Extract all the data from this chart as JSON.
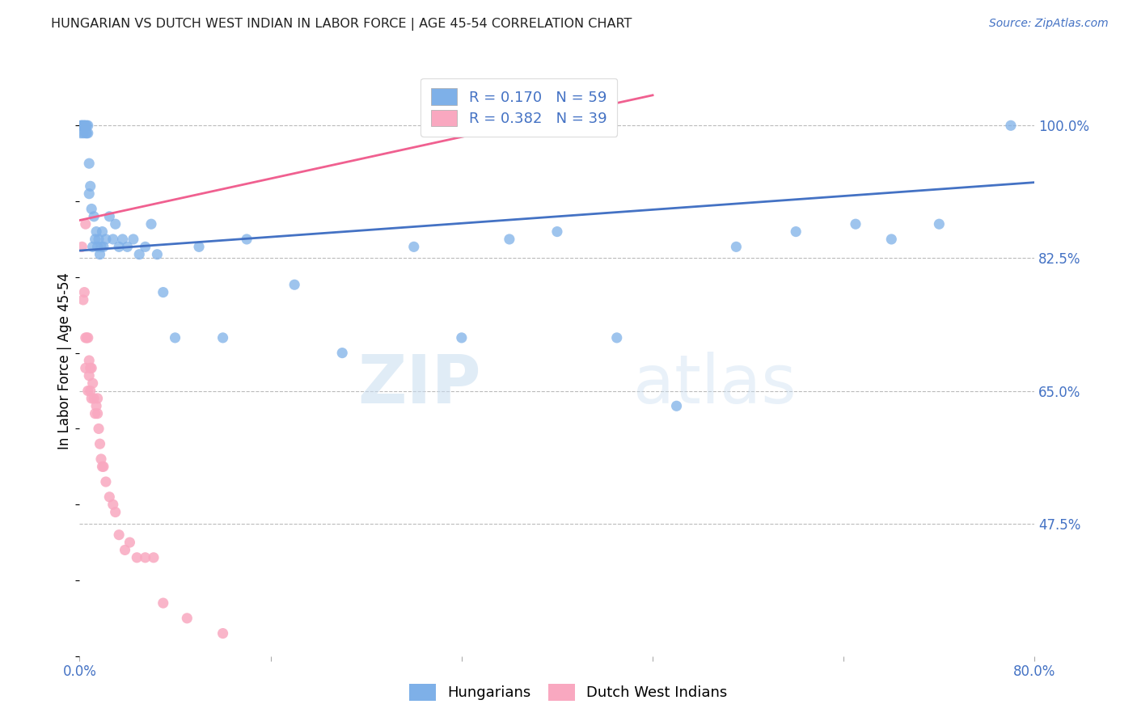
{
  "title": "HUNGARIAN VS DUTCH WEST INDIAN IN LABOR FORCE | AGE 45-54 CORRELATION CHART",
  "source": "Source: ZipAtlas.com",
  "ylabel": "In Labor Force | Age 45-54",
  "xlim": [
    0.0,
    0.8
  ],
  "ylim": [
    0.3,
    1.08
  ],
  "yticks": [
    0.475,
    0.65,
    0.825,
    1.0
  ],
  "ytick_labels": [
    "47.5%",
    "65.0%",
    "82.5%",
    "100.0%"
  ],
  "xticks": [
    0.0,
    0.16,
    0.32,
    0.48,
    0.64,
    0.8
  ],
  "xtick_labels": [
    "0.0%",
    "",
    "",
    "",
    "",
    "80.0%"
  ],
  "blue_R": 0.17,
  "blue_N": 59,
  "pink_R": 0.382,
  "pink_N": 39,
  "blue_color": "#7EB0E8",
  "pink_color": "#F9A8C0",
  "trend_blue": "#4472C4",
  "trend_pink": "#F06090",
  "blue_label": "Hungarians",
  "pink_label": "Dutch West Indians",
  "legend_R_color": "#4472C4",
  "title_color": "#222222",
  "axis_color": "#4472C4",
  "grid_color": "#bbbbbb",
  "watermark_zip": "ZIP",
  "watermark_atlas": "atlas",
  "blue_x": [
    0.001,
    0.001,
    0.002,
    0.002,
    0.003,
    0.003,
    0.004,
    0.004,
    0.005,
    0.005,
    0.006,
    0.006,
    0.007,
    0.007,
    0.008,
    0.008,
    0.009,
    0.01,
    0.011,
    0.012,
    0.013,
    0.014,
    0.015,
    0.016,
    0.017,
    0.018,
    0.019,
    0.02,
    0.022,
    0.025,
    0.028,
    0.03,
    0.033,
    0.036,
    0.04,
    0.045,
    0.05,
    0.055,
    0.06,
    0.065,
    0.07,
    0.08,
    0.1,
    0.12,
    0.14,
    0.18,
    0.22,
    0.28,
    0.32,
    0.36,
    0.4,
    0.45,
    0.5,
    0.55,
    0.6,
    0.65,
    0.68,
    0.72,
    0.78
  ],
  "blue_y": [
    1.0,
    0.99,
    1.0,
    1.0,
    1.0,
    0.99,
    1.0,
    1.0,
    1.0,
    0.99,
    1.0,
    0.99,
    1.0,
    0.99,
    0.91,
    0.95,
    0.92,
    0.89,
    0.84,
    0.88,
    0.85,
    0.86,
    0.84,
    0.85,
    0.83,
    0.84,
    0.86,
    0.84,
    0.85,
    0.88,
    0.85,
    0.87,
    0.84,
    0.85,
    0.84,
    0.85,
    0.83,
    0.84,
    0.87,
    0.83,
    0.78,
    0.72,
    0.84,
    0.72,
    0.85,
    0.79,
    0.7,
    0.84,
    0.72,
    0.85,
    0.86,
    0.72,
    0.63,
    0.84,
    0.86,
    0.87,
    0.85,
    0.87,
    1.0
  ],
  "pink_x": [
    0.002,
    0.003,
    0.004,
    0.005,
    0.005,
    0.006,
    0.007,
    0.007,
    0.008,
    0.008,
    0.009,
    0.009,
    0.01,
    0.01,
    0.011,
    0.012,
    0.013,
    0.014,
    0.015,
    0.015,
    0.016,
    0.017,
    0.018,
    0.019,
    0.02,
    0.022,
    0.025,
    0.028,
    0.03,
    0.033,
    0.038,
    0.042,
    0.048,
    0.055,
    0.062,
    0.07,
    0.09,
    0.12,
    0.005
  ],
  "pink_y": [
    0.84,
    0.77,
    0.78,
    0.72,
    0.68,
    0.72,
    0.72,
    0.65,
    0.69,
    0.67,
    0.65,
    0.68,
    0.64,
    0.68,
    0.66,
    0.64,
    0.62,
    0.63,
    0.64,
    0.62,
    0.6,
    0.58,
    0.56,
    0.55,
    0.55,
    0.53,
    0.51,
    0.5,
    0.49,
    0.46,
    0.44,
    0.45,
    0.43,
    0.43,
    0.43,
    0.37,
    0.35,
    0.33,
    0.87
  ],
  "blue_trend_x": [
    0.0,
    0.8
  ],
  "blue_trend_y": [
    0.835,
    0.925
  ],
  "pink_trend_x": [
    0.0,
    0.48
  ],
  "pink_trend_y": [
    0.875,
    1.04
  ]
}
